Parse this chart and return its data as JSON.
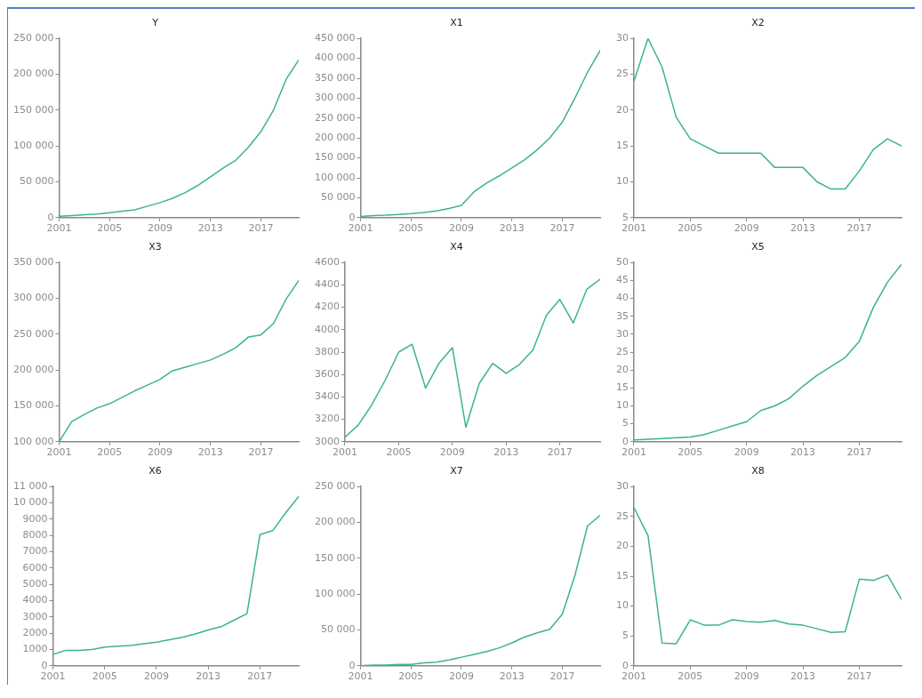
{
  "chart_data": [
    {
      "type": "line",
      "title": "Y",
      "x": [
        2001,
        2002,
        2003,
        2004,
        2005,
        2006,
        2007,
        2008,
        2009,
        2010,
        2011,
        2012,
        2013,
        2014,
        2015,
        2016,
        2017,
        2018,
        2019,
        2020
      ],
      "xlim": [
        2001,
        2020
      ],
      "xticks": [
        2001,
        2005,
        2009,
        2013,
        2017
      ],
      "ylim": [
        0,
        250000
      ],
      "yticks": [
        0,
        {
          "value": 50000,
          "label": "50 000"
        },
        {
          "value": 100000,
          "label": "100 000"
        },
        {
          "value": 150000,
          "label": "150 000"
        },
        {
          "value": 200000,
          "label": "200 000"
        },
        {
          "value": 250000,
          "label": "250 000"
        }
      ],
      "series": [
        {
          "color": "#3cb48a",
          "values": [
            2000,
            3000,
            4000,
            5000,
            7000,
            9000,
            11000,
            16000,
            21000,
            27000,
            35000,
            45000,
            57000,
            69000,
            80000,
            98000,
            120000,
            150000,
            193000,
            220000
          ]
        }
      ]
    },
    {
      "type": "line",
      "title": "X1",
      "x": [
        2001,
        2002,
        2003,
        2004,
        2005,
        2006,
        2007,
        2008,
        2009,
        2010,
        2011,
        2012,
        2013,
        2014,
        2015,
        2016,
        2017,
        2018,
        2019,
        2020
      ],
      "xlim": [
        2001,
        2020
      ],
      "xticks": [
        2001,
        2005,
        2009,
        2013,
        2017
      ],
      "ylim": [
        0,
        450000
      ],
      "yticks": [
        0,
        {
          "value": 50000,
          "label": "50 000"
        },
        {
          "value": 100000,
          "label": "100 000"
        },
        {
          "value": 150000,
          "label": "150 000"
        },
        {
          "value": 200000,
          "label": "200 000"
        },
        {
          "value": 250000,
          "label": "250 000"
        },
        {
          "value": 300000,
          "label": "300 000"
        },
        {
          "value": 350000,
          "label": "350 000"
        },
        {
          "value": 400000,
          "label": "400 000"
        },
        {
          "value": 450000,
          "label": "450 000"
        }
      ],
      "series": [
        {
          "color": "#3cb48a",
          "values": [
            3000,
            5000,
            6000,
            8000,
            10000,
            13000,
            17000,
            23000,
            31000,
            65000,
            87000,
            105000,
            125000,
            145000,
            170000,
            200000,
            240000,
            300000,
            365000,
            420000
          ]
        }
      ]
    },
    {
      "type": "line",
      "title": "X2",
      "x": [
        2001,
        2002,
        2003,
        2004,
        2005,
        2006,
        2007,
        2008,
        2009,
        2010,
        2011,
        2012,
        2013,
        2014,
        2015,
        2016,
        2017,
        2018,
        2019,
        2020
      ],
      "xlim": [
        2001,
        2020
      ],
      "xticks": [
        2001,
        2005,
        2009,
        2013,
        2017
      ],
      "ylim": [
        5,
        30
      ],
      "yticks": [
        5,
        10,
        15,
        20,
        25,
        30
      ],
      "series": [
        {
          "color": "#3cb48a",
          "values": [
            24,
            30,
            26,
            19,
            16,
            15,
            14,
            14,
            14,
            14,
            12,
            12,
            12,
            10,
            9,
            9,
            11.5,
            14.5,
            16,
            15
          ]
        }
      ]
    },
    {
      "type": "line",
      "title": "X3",
      "x": [
        2001,
        2002,
        2003,
        2004,
        2005,
        2006,
        2007,
        2008,
        2009,
        2010,
        2011,
        2012,
        2013,
        2014,
        2015,
        2016,
        2017,
        2018,
        2019,
        2020
      ],
      "xlim": [
        2001,
        2020
      ],
      "xticks": [
        2001,
        2005,
        2009,
        2013,
        2017
      ],
      "ylim": [
        100000,
        350000
      ],
      "yticks": [
        {
          "value": 100000,
          "label": "100 000"
        },
        {
          "value": 150000,
          "label": "150 000"
        },
        {
          "value": 200000,
          "label": "200 000"
        },
        {
          "value": 250000,
          "label": "250 000"
        },
        {
          "value": 300000,
          "label": "300 000"
        },
        {
          "value": 350000,
          "label": "350 000"
        }
      ],
      "series": [
        {
          "color": "#3cb48a",
          "values": [
            100000,
            128000,
            138000,
            147000,
            153000,
            162000,
            171000,
            179000,
            187000,
            199000,
            204000,
            209000,
            214000,
            222000,
            231000,
            246000,
            249000,
            265000,
            299000,
            325000
          ]
        }
      ]
    },
    {
      "type": "line",
      "title": "X4",
      "x": [
        2001,
        2002,
        2003,
        2004,
        2005,
        2006,
        2007,
        2008,
        2009,
        2010,
        2011,
        2012,
        2013,
        2014,
        2015,
        2016,
        2017,
        2018,
        2019,
        2020
      ],
      "xlim": [
        2001,
        2020
      ],
      "xticks": [
        2001,
        2005,
        2009,
        2013,
        2017
      ],
      "ylim": [
        3000,
        4600
      ],
      "yticks": [
        3000,
        3200,
        3400,
        3600,
        3800,
        4000,
        4200,
        4400,
        4600
      ],
      "series": [
        {
          "color": "#3cb48a",
          "values": [
            3040,
            3150,
            3330,
            3550,
            3800,
            3870,
            3480,
            3700,
            3840,
            3130,
            3520,
            3700,
            3610,
            3690,
            3820,
            4130,
            4270,
            4060,
            4360,
            4450
          ]
        }
      ]
    },
    {
      "type": "line",
      "title": "X5",
      "x": [
        2001,
        2002,
        2003,
        2004,
        2005,
        2006,
        2007,
        2008,
        2009,
        2010,
        2011,
        2012,
        2013,
        2014,
        2015,
        2016,
        2017,
        2018,
        2019,
        2020
      ],
      "xlim": [
        2001,
        2020
      ],
      "xticks": [
        2001,
        2005,
        2009,
        2013,
        2017
      ],
      "ylim": [
        0,
        50
      ],
      "yticks": [
        0,
        5,
        10,
        15,
        20,
        25,
        30,
        35,
        40,
        45,
        50
      ],
      "series": [
        {
          "color": "#3cb48a",
          "values": [
            0.5,
            0.7,
            0.9,
            1.1,
            1.3,
            2,
            3.2,
            4.4,
            5.6,
            8.7,
            10,
            12,
            15.5,
            18.5,
            21,
            23.5,
            28,
            37.5,
            44.5,
            49.5
          ]
        }
      ]
    },
    {
      "type": "line",
      "title": "X6",
      "x": [
        2001,
        2002,
        2003,
        2004,
        2005,
        2006,
        2007,
        2008,
        2009,
        2010,
        2011,
        2012,
        2013,
        2014,
        2015,
        2016,
        2017,
        2018,
        2019,
        2020
      ],
      "xlim": [
        2001,
        2020
      ],
      "xticks": [
        2001,
        2005,
        2009,
        2013,
        2017
      ],
      "ylim": [
        0,
        11000
      ],
      "yticks": [
        0,
        1000,
        2000,
        3000,
        4000,
        5000,
        6000,
        7000,
        8000,
        9000,
        {
          "value": 10000,
          "label": "10 000"
        },
        {
          "value": 11000,
          "label": "11 000"
        }
      ],
      "series": [
        {
          "color": "#3cb48a",
          "values": [
            700,
            950,
            950,
            1000,
            1150,
            1200,
            1250,
            1350,
            1450,
            1600,
            1750,
            1950,
            2200,
            2400,
            2800,
            3200,
            8050,
            8300,
            9400,
            10400
          ]
        }
      ]
    },
    {
      "type": "line",
      "title": "X7",
      "x": [
        2001,
        2002,
        2003,
        2004,
        2005,
        2006,
        2007,
        2008,
        2009,
        2010,
        2011,
        2012,
        2013,
        2014,
        2015,
        2016,
        2017,
        2018,
        2019,
        2020
      ],
      "xlim": [
        2001,
        2020
      ],
      "xticks": [
        2001,
        2005,
        2009,
        2013,
        2017
      ],
      "ylim": [
        0,
        250000
      ],
      "yticks": [
        0,
        {
          "value": 50000,
          "label": "50 000"
        },
        {
          "value": 100000,
          "label": "100 000"
        },
        {
          "value": 150000,
          "label": "150 000"
        },
        {
          "value": 200000,
          "label": "200 000"
        },
        {
          "value": 250000,
          "label": "250 000"
        }
      ],
      "series": [
        {
          "color": "#3cb48a",
          "values": [
            0,
            1000,
            1000,
            2000,
            2000,
            4000,
            5000,
            8000,
            12000,
            16000,
            20000,
            25000,
            32000,
            40000,
            46000,
            51000,
            72000,
            126000,
            195000,
            210000
          ]
        }
      ]
    },
    {
      "type": "line",
      "title": "X8",
      "x": [
        2001,
        2002,
        2003,
        2004,
        2005,
        2006,
        2007,
        2008,
        2009,
        2010,
        2011,
        2012,
        2013,
        2014,
        2015,
        2016,
        2017,
        2018,
        2019,
        2020
      ],
      "xlim": [
        2001,
        2020
      ],
      "xticks": [
        2001,
        2005,
        2009,
        2013,
        2017
      ],
      "ylim": [
        0,
        30
      ],
      "yticks": [
        0,
        5,
        10,
        15,
        20,
        25,
        30
      ],
      "series": [
        {
          "color": "#3cb48a",
          "values": [
            26.5,
            21.8,
            3.8,
            3.7,
            7.7,
            6.8,
            6.8,
            7.7,
            7.4,
            7.3,
            7.6,
            7.0,
            6.8,
            6.2,
            5.6,
            5.7,
            14.5,
            14.3,
            15.2,
            11.1
          ]
        }
      ]
    }
  ]
}
